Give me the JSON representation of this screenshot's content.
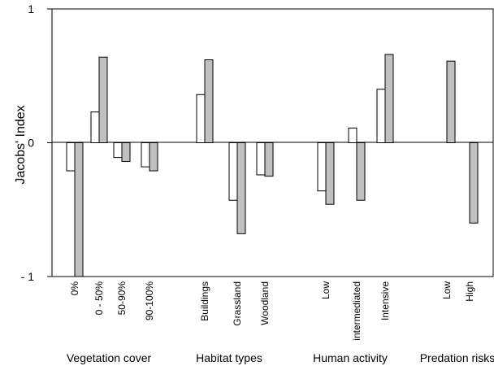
{
  "chart_data": {
    "type": "bar",
    "ylabel": "Jacobs' Index",
    "ylim": [
      -1,
      1
    ],
    "yticks": [
      {
        "value": 1,
        "label": "1"
      },
      {
        "value": 0,
        "label": "0"
      },
      {
        "value": -1,
        "label": "- 1"
      }
    ],
    "colors": {
      "series_a": "#ffffff",
      "series_b": "#c0c0c0",
      "stroke": "#000000"
    },
    "groups": [
      {
        "label": "Vegetation cover",
        "categories": [
          {
            "label": "0%",
            "values": [
              -0.21,
              -1.0
            ]
          },
          {
            "label": "0 - 50%",
            "values": [
              0.23,
              0.64
            ]
          },
          {
            "label": "50-90%",
            "values": [
              -0.11,
              -0.14
            ]
          },
          {
            "label": "90-100%",
            "values": [
              -0.18,
              -0.21
            ]
          }
        ]
      },
      {
        "label": "Habitat types",
        "categories": [
          {
            "label": "Buildings",
            "values": [
              0.36,
              0.62
            ]
          },
          {
            "label": "Grassland",
            "values": [
              -0.43,
              -0.68
            ]
          },
          {
            "label": "Woodland",
            "values": [
              -0.24,
              -0.25
            ]
          }
        ]
      },
      {
        "label": "Human activity",
        "categories": [
          {
            "label": "Low",
            "values": [
              -0.36,
              -0.46
            ]
          },
          {
            "label": "intermediated",
            "values": [
              0.11,
              -0.43
            ]
          },
          {
            "label": "Intensive",
            "values": [
              0.4,
              0.66
            ]
          }
        ]
      },
      {
        "label": "Predation risks",
        "categories": [
          {
            "label": "Low",
            "values": [
              null,
              0.61
            ]
          },
          {
            "label": "High",
            "values": [
              null,
              -0.6
            ]
          }
        ]
      }
    ]
  }
}
